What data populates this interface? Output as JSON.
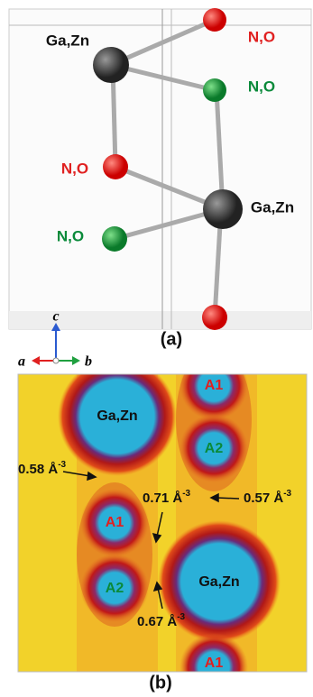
{
  "panel_a": {
    "caption": "(a)",
    "atom_labels": [
      "Ga,Zn",
      "N,O",
      "N,O",
      "N,O",
      "Ga,Zn",
      "N,O"
    ],
    "axes": {
      "c": "c",
      "a": "a",
      "b": "b"
    }
  },
  "panel_b": {
    "caption": "(b)",
    "site_labels": [
      "Ga,Zn",
      "A1",
      "A2",
      "A1",
      "A2",
      "Ga,Zn",
      "A1"
    ],
    "annotations": [
      {
        "text": "0.58 Å",
        "sup": "-3"
      },
      {
        "text": "0.71 Å",
        "sup": "-3"
      },
      {
        "text": "0.57 Å",
        "sup": "-3"
      },
      {
        "text": "0.67 Å",
        "sup": "-3"
      }
    ]
  }
}
